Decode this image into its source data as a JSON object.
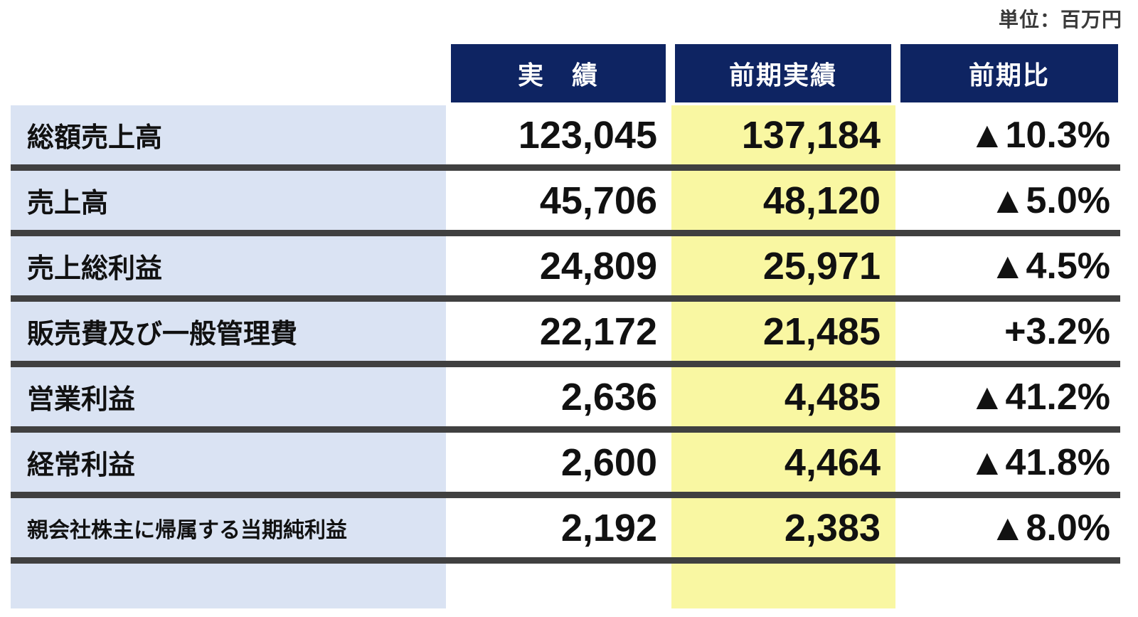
{
  "unit_label": "単位：百万円",
  "table": {
    "columns": [
      "実　績",
      "前期実績",
      "前期比"
    ],
    "rows": [
      {
        "label": "総額売上高",
        "actual": "123,045",
        "previous": "137,184",
        "yoy": "▲10.3%"
      },
      {
        "label": "売上高",
        "actual": "45,706",
        "previous": "48,120",
        "yoy": "▲5.0%"
      },
      {
        "label": "売上総利益",
        "actual": "24,809",
        "previous": "25,971",
        "yoy": "▲4.5%"
      },
      {
        "label": "販売費及び一般管理費",
        "actual": "22,172",
        "previous": "21,485",
        "yoy": "+3.2%"
      },
      {
        "label": "営業利益",
        "actual": "2,636",
        "previous": "4,485",
        "yoy": "▲41.2%"
      },
      {
        "label": "経常利益",
        "actual": "2,600",
        "previous": "4,464",
        "yoy": "▲41.8%"
      },
      {
        "label": "親会社株主に帰属する当期純利益",
        "actual": "2,192",
        "previous": "2,383",
        "yoy": "▲8.0%"
      }
    ]
  },
  "colors": {
    "header_bg": "#0e2462",
    "header_text": "#ffffff",
    "label_band": "#dae3f3",
    "prev_band": "#f9f7a2",
    "separator": "#404040",
    "text": "#111111",
    "unit_text": "#3a3a3a"
  },
  "chart_data": {
    "type": "table",
    "unit": "単位：百万円",
    "columns": [
      "",
      "実　績",
      "前期実績",
      "前期比"
    ],
    "rows": [
      {
        "item": "総額売上高",
        "actual": 123045,
        "previous": 137184,
        "yoy_pct": -10.3,
        "yoy_display": "▲10.3%"
      },
      {
        "item": "売上高",
        "actual": 45706,
        "previous": 48120,
        "yoy_pct": -5.0,
        "yoy_display": "▲5.0%"
      },
      {
        "item": "売上総利益",
        "actual": 24809,
        "previous": 25971,
        "yoy_pct": -4.5,
        "yoy_display": "▲4.5%"
      },
      {
        "item": "販売費及び一般管理費",
        "actual": 22172,
        "previous": 21485,
        "yoy_pct": 3.2,
        "yoy_display": "+3.2%"
      },
      {
        "item": "営業利益",
        "actual": 2636,
        "previous": 4485,
        "yoy_pct": -41.2,
        "yoy_display": "▲41.2%"
      },
      {
        "item": "経常利益",
        "actual": 2600,
        "previous": 4464,
        "yoy_pct": -41.8,
        "yoy_display": "▲41.8%"
      },
      {
        "item": "親会社株主に帰属する当期純利益",
        "actual": 2192,
        "previous": 2383,
        "yoy_pct": -8.0,
        "yoy_display": "▲8.0%"
      }
    ]
  }
}
